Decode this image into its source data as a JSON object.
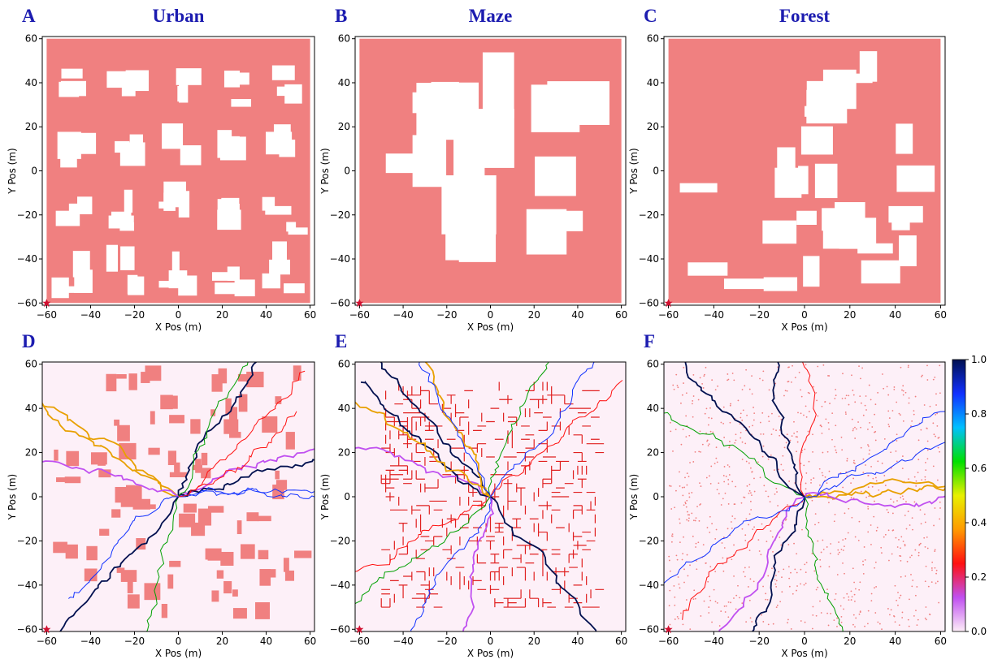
{
  "chart_data": [
    {
      "type": "coverage-map",
      "panel_label": "A",
      "title": "Urban",
      "xlabel": "X Pos (m)",
      "ylabel": "Y Pos (m)",
      "xlim": [
        -62,
        62
      ],
      "ylim": [
        -61,
        61
      ],
      "xticks": [
        {
          "value": -60,
          "label": "−60"
        },
        {
          "value": -40,
          "label": "−40"
        },
        {
          "value": -20,
          "label": "−20"
        },
        0,
        20,
        40,
        60
      ],
      "yticks": [
        {
          "value": -60,
          "label": "−60"
        },
        {
          "value": -40,
          "label": "−40"
        },
        {
          "value": -20,
          "label": "−20"
        },
        0,
        20,
        40,
        60
      ],
      "start": {
        "x": -60,
        "y": -60
      },
      "color": "#f08080"
    },
    {
      "type": "coverage-map",
      "panel_label": "B",
      "title": "Maze",
      "xlabel": "X Pos (m)",
      "ylabel": "Y Pos (m)",
      "xlim": [
        -62,
        62
      ],
      "ylim": [
        -61,
        61
      ],
      "xticks": [
        {
          "value": -60,
          "label": "−60"
        },
        {
          "value": -40,
          "label": "−40"
        },
        {
          "value": -20,
          "label": "−20"
        },
        0,
        20,
        40,
        60
      ],
      "yticks": [
        {
          "value": -60,
          "label": "−60"
        },
        {
          "value": -40,
          "label": "−40"
        },
        {
          "value": -20,
          "label": "−20"
        },
        0,
        20,
        40,
        60
      ],
      "start": {
        "x": -60,
        "y": -60
      },
      "color": "#f08080"
    },
    {
      "type": "coverage-map",
      "panel_label": "C",
      "title": "Forest",
      "xlabel": "X Pos (m)",
      "ylabel": "Y Pos (m)",
      "xlim": [
        -62,
        62
      ],
      "ylim": [
        -61,
        61
      ],
      "xticks": [
        {
          "value": -60,
          "label": "−60"
        },
        {
          "value": -40,
          "label": "−40"
        },
        {
          "value": -20,
          "label": "−20"
        },
        0,
        20,
        40,
        60
      ],
      "yticks": [
        {
          "value": -60,
          "label": "−60"
        },
        {
          "value": -40,
          "label": "−40"
        },
        {
          "value": -20,
          "label": "−20"
        },
        0,
        20,
        40,
        60
      ],
      "start": {
        "x": -60,
        "y": -60
      },
      "color": "#f08080"
    },
    {
      "type": "path-density",
      "panel_label": "D",
      "xlabel": "X Pos (m)",
      "ylabel": "Y Pos (m)",
      "xlim": [
        -62,
        62
      ],
      "ylim": [
        -61,
        61
      ],
      "xticks": [
        {
          "value": -60,
          "label": "−60"
        },
        {
          "value": -40,
          "label": "−40"
        },
        {
          "value": -20,
          "label": "−20"
        },
        0,
        20,
        40,
        60
      ],
      "yticks": [
        {
          "value": -60,
          "label": "−60"
        },
        {
          "value": -40,
          "label": "−40"
        },
        {
          "value": -20,
          "label": "−20"
        },
        0,
        20,
        40,
        60
      ],
      "start": {
        "x": -60,
        "y": -60
      },
      "color": "#f08080"
    },
    {
      "type": "path-density",
      "panel_label": "E",
      "xlabel": "X Pos (m)",
      "ylabel": "Y Pos (m)",
      "xlim": [
        -62,
        62
      ],
      "ylim": [
        -61,
        61
      ],
      "xticks": [
        {
          "value": -60,
          "label": "−60"
        },
        {
          "value": -40,
          "label": "−40"
        },
        {
          "value": -20,
          "label": "−20"
        },
        0,
        20,
        40,
        60
      ],
      "yticks": [
        {
          "value": -60,
          "label": "−60"
        },
        {
          "value": -40,
          "label": "−40"
        },
        {
          "value": -20,
          "label": "−20"
        },
        0,
        20,
        40,
        60
      ],
      "start": {
        "x": -60,
        "y": -60
      },
      "color": "#f08080"
    },
    {
      "type": "path-density",
      "panel_label": "F",
      "xlabel": "X Pos (m)",
      "ylabel": "Y Pos (m)",
      "xlim": [
        -62,
        62
      ],
      "ylim": [
        -61,
        61
      ],
      "xticks": [
        {
          "value": -60,
          "label": "−60"
        },
        {
          "value": -40,
          "label": "−40"
        },
        {
          "value": -20,
          "label": "−20"
        },
        0,
        20,
        40,
        60
      ],
      "yticks": [
        {
          "value": -60,
          "label": "−60"
        },
        {
          "value": -40,
          "label": "−40"
        },
        {
          "value": -20,
          "label": "−20"
        },
        0,
        20,
        40,
        60
      ],
      "start": {
        "x": -60,
        "y": -60
      },
      "color": "#f08080",
      "colorbar": {
        "lim": [
          0,
          1
        ],
        "ticks": [
          {
            "value": 0,
            "label": "0.0"
          },
          {
            "value": 0.2,
            "label": "0.2"
          },
          {
            "value": 0.4,
            "label": "0.4"
          },
          {
            "value": 0.6,
            "label": "0.6"
          },
          {
            "value": 0.8,
            "label": "0.8"
          },
          {
            "value": 1,
            "label": "1.0"
          }
        ],
        "colors": [
          "#fdeef8",
          "#c050f0",
          "#ff1010",
          "#ff9a00",
          "#e8f000",
          "#00e000",
          "#00c0ff",
          "#1030ff",
          "#001050"
        ]
      }
    }
  ]
}
